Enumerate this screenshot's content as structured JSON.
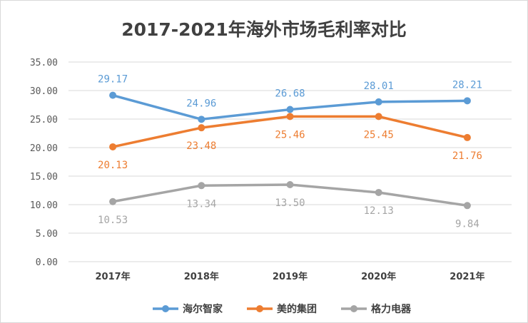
{
  "chart_data": {
    "type": "line",
    "title": "2017-2021年海外市场毛利率对比",
    "xlabel": "",
    "ylabel": "",
    "categories": [
      "2017年",
      "2018年",
      "2019年",
      "2020年",
      "2021年"
    ],
    "y_ticks": [
      "0.00",
      "5.00",
      "10.00",
      "15.00",
      "20.00",
      "25.00",
      "30.00",
      "35.00"
    ],
    "ylim": [
      0,
      35
    ],
    "grid": true,
    "legend_position": "bottom",
    "series": [
      {
        "name": "海尔智家",
        "color": "#5b9bd5",
        "values": [
          29.17,
          24.96,
          26.68,
          28.01,
          28.21
        ],
        "labels": [
          "29.17",
          "24.96",
          "26.68",
          "28.01",
          "28.21"
        ],
        "label_position": "above"
      },
      {
        "name": "美的集团",
        "color": "#ed7d31",
        "values": [
          20.13,
          23.48,
          25.46,
          25.45,
          21.76
        ],
        "labels": [
          "20.13",
          "23.48",
          "25.46",
          "25.45",
          "21.76"
        ],
        "label_position": "below"
      },
      {
        "name": "格力电器",
        "color": "#a5a5a5",
        "values": [
          10.53,
          13.34,
          13.5,
          12.13,
          9.84
        ],
        "labels": [
          "10.53",
          "13.34",
          "13.50",
          "12.13",
          "9.84"
        ],
        "label_position": "below"
      }
    ]
  }
}
